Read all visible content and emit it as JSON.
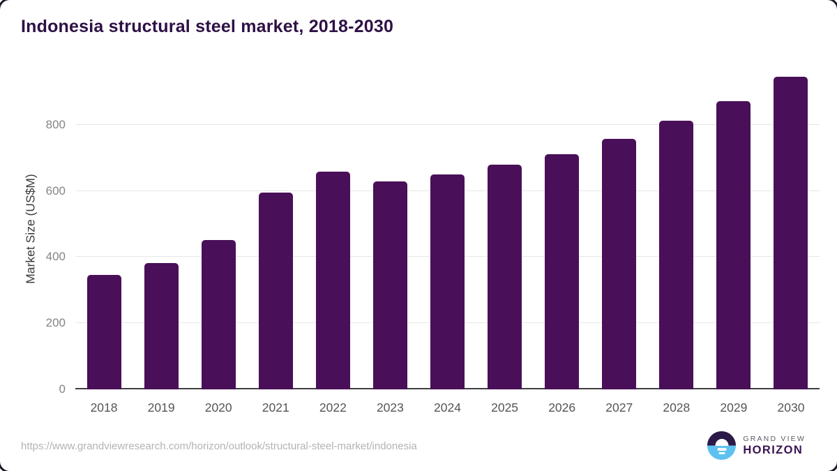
{
  "chart_data": {
    "type": "bar",
    "title": "Indonesia structural steel market, 2018-2030",
    "categories": [
      "2018",
      "2019",
      "2020",
      "2021",
      "2022",
      "2023",
      "2024",
      "2025",
      "2026",
      "2027",
      "2028",
      "2029",
      "2030"
    ],
    "values": [
      345,
      381,
      452,
      595,
      658,
      628,
      650,
      679,
      711,
      758,
      813,
      872,
      946
    ],
    "xlabel": "",
    "ylabel": "Market Size (US$M)",
    "ylim": [
      0,
      970
    ],
    "yticks": [
      0,
      200,
      400,
      600,
      800
    ],
    "grid": "horizontal",
    "legend": false,
    "bar_color": "#490f58"
  },
  "footer": {
    "source_url": "https://www.grandviewresearch.com/horizon/outlook/structural-steel-market/indonesia",
    "brand": {
      "top": "GRAND VIEW",
      "bottom": "HORIZON"
    }
  },
  "colors": {
    "bar": "#490f58",
    "title_text": "#2e1045",
    "axis_line": "#3f3f3f",
    "gridline": "#e7e7e7",
    "y_tick_label": "#858585",
    "x_tick_label": "#555555",
    "source_url_text": "#b3b3b3",
    "logo_top_half": "#2b1a47",
    "logo_bottom_half": "#5ec1ef",
    "brand_horizon_text": "#3a1453"
  }
}
